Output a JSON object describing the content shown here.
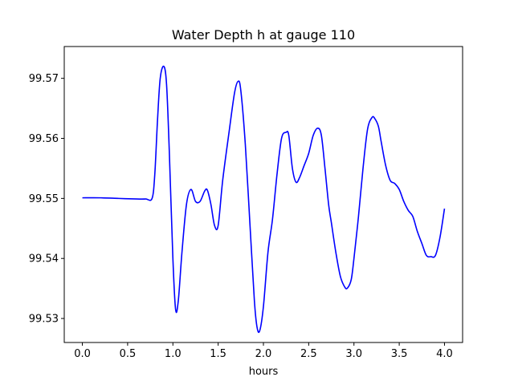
{
  "chart_data": {
    "type": "line",
    "title": "Water Depth h at gauge 110",
    "xlabel": "hours",
    "ylabel": "",
    "xlim": [
      -0.2,
      4.2
    ],
    "ylim": [
      99.526,
      99.5753
    ],
    "x_ticks": [
      0.0,
      0.5,
      1.0,
      1.5,
      2.0,
      2.5,
      3.0,
      3.5,
      4.0
    ],
    "x_tick_labels": [
      "0.0",
      "0.5",
      "1.0",
      "1.5",
      "2.0",
      "2.5",
      "3.0",
      "3.5",
      "4.0"
    ],
    "y_ticks": [
      99.53,
      99.54,
      99.55,
      99.56,
      99.57
    ],
    "y_tick_labels": [
      "99.53",
      "99.54",
      "99.55",
      "99.56",
      "99.57"
    ],
    "grid": false,
    "series_color": "#0000ff",
    "series": [
      {
        "x": [
          0.0,
          0.2,
          0.4,
          0.6,
          0.7,
          0.77,
          0.8,
          0.83,
          0.86,
          0.9,
          0.93,
          0.96,
          1.0,
          1.03,
          1.06,
          1.1,
          1.15,
          1.2,
          1.25,
          1.3,
          1.35,
          1.38,
          1.42,
          1.46,
          1.5,
          1.55,
          1.62,
          1.68,
          1.72,
          1.75,
          1.8,
          1.85,
          1.9,
          1.93,
          1.96,
          2.0,
          2.05,
          2.1,
          2.15,
          2.2,
          2.25,
          2.28,
          2.32,
          2.36,
          2.4,
          2.45,
          2.5,
          2.55,
          2.6,
          2.64,
          2.68,
          2.72,
          2.75,
          2.8,
          2.85,
          2.9,
          2.93,
          2.97,
          3.0,
          3.05,
          3.1,
          3.15,
          3.2,
          3.23,
          3.27,
          3.3,
          3.35,
          3.4,
          3.45,
          3.5,
          3.55,
          3.6,
          3.65,
          3.7,
          3.75,
          3.8,
          3.85,
          3.9,
          3.95,
          4.0
        ],
        "y": [
          99.5501,
          99.5501,
          99.55,
          99.5499,
          99.5499,
          99.55,
          99.554,
          99.563,
          99.57,
          99.572,
          99.569,
          99.558,
          99.54,
          99.5315,
          99.533,
          99.541,
          99.549,
          99.5515,
          99.5495,
          99.5495,
          99.5512,
          99.5514,
          99.549,
          99.5455,
          99.5455,
          99.553,
          99.561,
          99.5675,
          99.5695,
          99.568,
          99.559,
          99.546,
          99.533,
          99.5285,
          99.528,
          99.532,
          99.541,
          99.5465,
          99.554,
          99.56,
          99.561,
          99.5605,
          99.555,
          99.5527,
          99.5535,
          99.5555,
          99.5575,
          99.5605,
          99.5617,
          99.5605,
          99.555,
          99.549,
          99.546,
          99.541,
          99.537,
          99.5352,
          99.5351,
          99.5365,
          99.54,
          99.547,
          99.555,
          99.5615,
          99.5635,
          99.5633,
          99.562,
          99.5595,
          99.5555,
          99.553,
          99.5525,
          99.5515,
          99.5495,
          99.548,
          99.547,
          99.5445,
          99.5425,
          99.5405,
          99.5403,
          99.5405,
          99.5435,
          99.5483
        ]
      }
    ]
  }
}
